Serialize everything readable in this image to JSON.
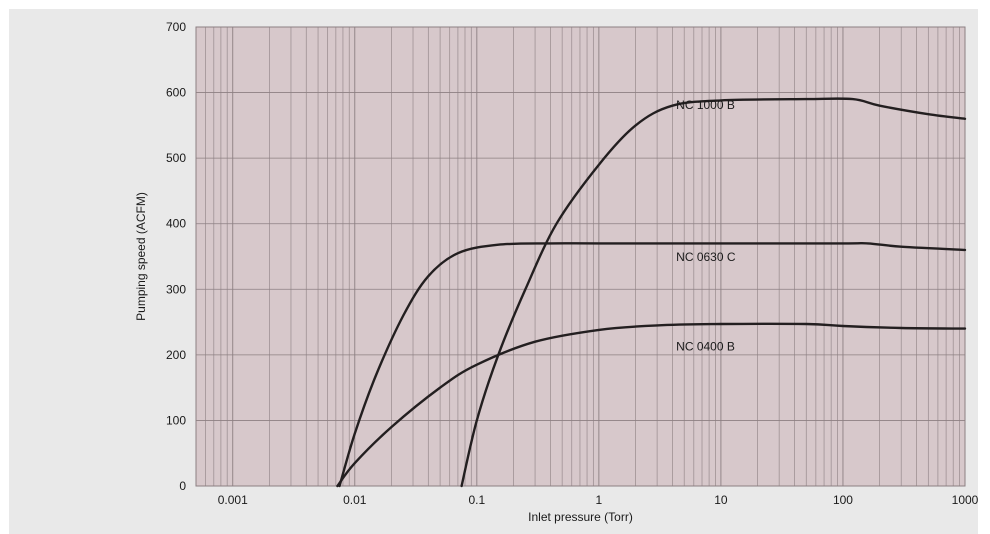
{
  "chart_data": {
    "type": "line",
    "xlabel": "Inlet pressure (Torr)",
    "ylabel": "Pumping speed (ACFM)",
    "x_scale": "log",
    "xlim": [
      0.0005,
      1000
    ],
    "ylim": [
      0,
      700
    ],
    "x_ticks": [
      {
        "value": 0.001,
        "label": "0.001"
      },
      {
        "value": 0.01,
        "label": "0.01"
      },
      {
        "value": 0.1,
        "label": "0.1"
      },
      {
        "value": 1,
        "label": "1"
      },
      {
        "value": 10,
        "label": "10"
      },
      {
        "value": 100,
        "label": "100"
      },
      {
        "value": 1000,
        "label": "1000"
      }
    ],
    "y_ticks": [
      {
        "value": 0,
        "label": "0"
      },
      {
        "value": 100,
        "label": "100"
      },
      {
        "value": 200,
        "label": "200"
      },
      {
        "value": 300,
        "label": "300"
      },
      {
        "value": 400,
        "label": "400"
      },
      {
        "value": 500,
        "label": "500"
      },
      {
        "value": 600,
        "label": "600"
      },
      {
        "value": 700,
        "label": "700"
      }
    ],
    "grid": true,
    "colors": {
      "plot_background": "#d7c8cb",
      "grid_line": "#8c7f82",
      "series_line": "#231f20",
      "panel_background": "#e9e9e9"
    },
    "series": [
      {
        "name": "NC 1000 B",
        "points": [
          [
            0.075,
            0
          ],
          [
            0.1,
            100
          ],
          [
            0.15,
            200
          ],
          [
            0.25,
            300
          ],
          [
            0.45,
            400
          ],
          [
            1,
            490
          ],
          [
            2,
            550
          ],
          [
            4,
            580
          ],
          [
            10,
            588
          ],
          [
            50,
            590
          ],
          [
            120,
            590
          ],
          [
            200,
            580
          ],
          [
            500,
            567
          ],
          [
            1000,
            560
          ]
        ]
      },
      {
        "name": "NC 0630 C",
        "points": [
          [
            0.0075,
            0
          ],
          [
            0.01,
            80
          ],
          [
            0.015,
            170
          ],
          [
            0.025,
            260
          ],
          [
            0.04,
            320
          ],
          [
            0.07,
            355
          ],
          [
            0.15,
            368
          ],
          [
            0.4,
            370
          ],
          [
            1,
            370
          ],
          [
            10,
            370
          ],
          [
            100,
            370
          ],
          [
            160,
            370
          ],
          [
            300,
            365
          ],
          [
            1000,
            360
          ]
        ]
      },
      {
        "name": "NC 0400 B",
        "points": [
          [
            0.0072,
            0
          ],
          [
            0.01,
            35
          ],
          [
            0.02,
            90
          ],
          [
            0.05,
            150
          ],
          [
            0.1,
            185
          ],
          [
            0.3,
            220
          ],
          [
            1,
            238
          ],
          [
            3,
            245
          ],
          [
            10,
            247
          ],
          [
            50,
            247
          ],
          [
            100,
            244
          ],
          [
            300,
            241
          ],
          [
            1000,
            240
          ]
        ]
      }
    ]
  }
}
